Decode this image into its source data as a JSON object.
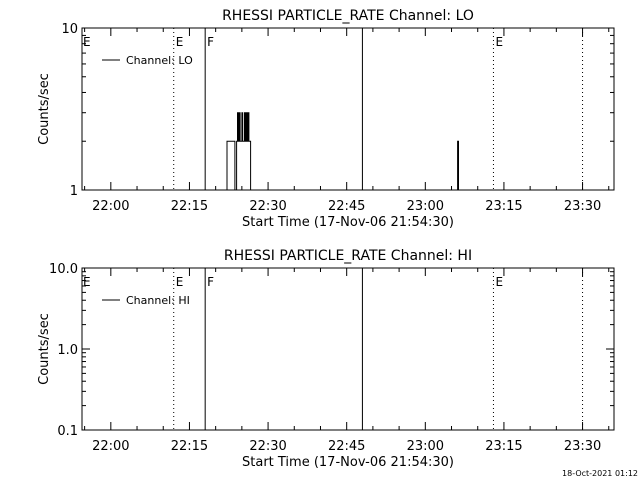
{
  "chart_data": [
    {
      "type": "line",
      "title": "RHESSI PARTICLE_RATE Channel: LO",
      "xlabel": "Start Time (17-Nov-06 21:54:30)",
      "ylabel": "Counts/sec",
      "y_scale": "log",
      "ylim": [
        1,
        10
      ],
      "y_ticks": [
        1,
        10
      ],
      "y_tick_labels": [
        "1",
        "10"
      ],
      "xlim": [
        "21:54:30",
        "23:36:00"
      ],
      "x_ticks": [
        "22:00",
        "22:15",
        "22:30",
        "22:45",
        "23:00",
        "23:15",
        "23:30"
      ],
      "grid": false,
      "legend": {
        "position": "top-left",
        "entries": [
          "Channel: LO"
        ]
      },
      "markers": [
        {
          "time": "22:12:00",
          "label": "E",
          "style": "dotted"
        },
        {
          "time": "22:18:00",
          "label": "F",
          "style": "solid"
        },
        {
          "time": "22:48:00",
          "label": "",
          "style": "solid"
        },
        {
          "time": "23:13:00",
          "label": "E",
          "style": "dotted"
        },
        {
          "time": "23:30:00",
          "label": "",
          "style": "dotted"
        }
      ],
      "edge_labels": [
        {
          "time": "21:54:30",
          "label": "E"
        }
      ],
      "series": [
        {
          "name": "Channel: LO",
          "x": [
            "22:21:50",
            "22:22:10",
            "22:23:20",
            "22:23:40",
            "22:23:50",
            "22:24:00",
            "22:24:10",
            "22:24:20",
            "22:24:30",
            "22:24:40",
            "22:24:50",
            "22:25:00",
            "22:25:10",
            "22:25:20",
            "22:25:30",
            "22:25:40",
            "22:25:50",
            "22:26:00",
            "22:26:10",
            "22:26:20",
            "22:26:30",
            "22:26:40",
            "22:26:50",
            "22:27:10",
            "23:06:00",
            "23:06:10",
            "23:06:20",
            "23:06:30"
          ],
          "y": [
            1,
            2,
            2,
            1,
            1,
            2,
            3,
            2,
            3,
            2,
            2,
            3,
            2,
            2,
            3,
            2,
            3,
            2,
            3,
            2,
            2,
            1,
            1,
            1,
            1,
            2,
            1,
            1
          ]
        }
      ]
    },
    {
      "type": "line",
      "title": "RHESSI PARTICLE_RATE Channel: HI",
      "xlabel": "Start Time (17-Nov-06 21:54:30)",
      "ylabel": "Counts/sec",
      "y_scale": "log",
      "ylim": [
        0.1,
        10
      ],
      "y_ticks": [
        0.1,
        1,
        10
      ],
      "y_tick_labels": [
        "0.1",
        "1.0",
        "10.0"
      ],
      "xlim": [
        "21:54:30",
        "23:36:00"
      ],
      "x_ticks": [
        "22:00",
        "22:15",
        "22:30",
        "22:45",
        "23:00",
        "23:15",
        "23:30"
      ],
      "grid": false,
      "legend": {
        "position": "top-left",
        "entries": [
          "Channel: HI"
        ]
      },
      "markers": [
        {
          "time": "22:12:00",
          "label": "E",
          "style": "dotted"
        },
        {
          "time": "22:18:00",
          "label": "F",
          "style": "solid"
        },
        {
          "time": "22:48:00",
          "label": "",
          "style": "solid"
        },
        {
          "time": "23:13:00",
          "label": "E",
          "style": "dotted"
        },
        {
          "time": "23:30:00",
          "label": "",
          "style": "dotted"
        }
      ],
      "edge_labels": [
        {
          "time": "21:54:30",
          "label": "E"
        }
      ],
      "series": [
        {
          "name": "Channel: HI",
          "x": [],
          "y": []
        }
      ]
    }
  ],
  "footer": {
    "timestamp": "18-Oct-2021 01:12"
  }
}
